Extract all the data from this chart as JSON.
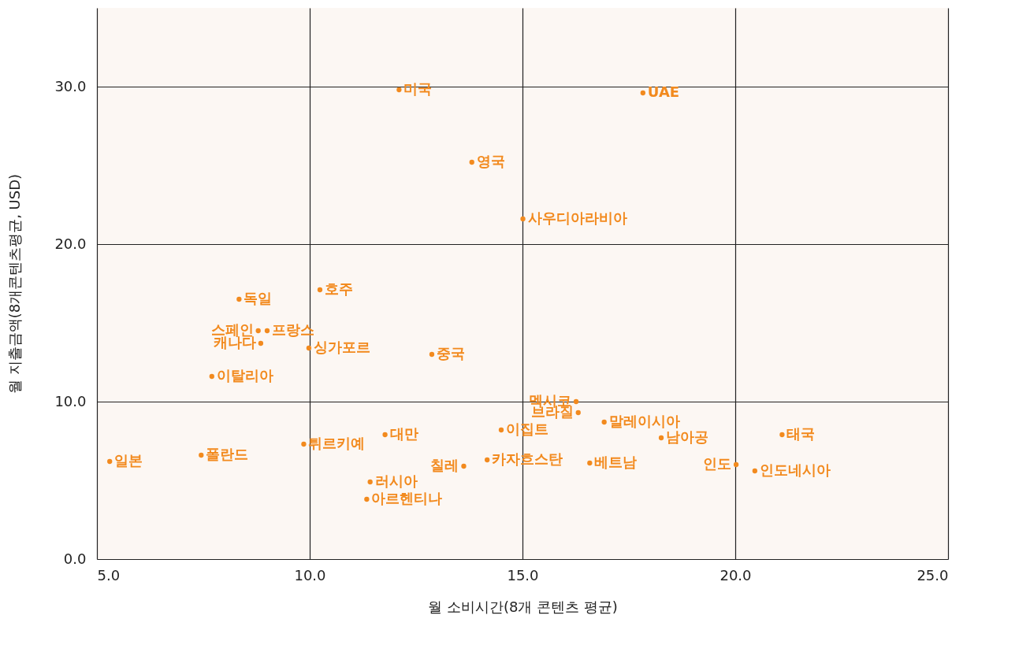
{
  "chart_data": {
    "type": "scatter",
    "xlabel": "월 소비시간(8개 콘텐츠 평균)",
    "ylabel": "월 지출금액(8개콘텐츠평균, USD)",
    "x": [
      12.1,
      17.83,
      13.81,
      15.01,
      10.24,
      8.34,
      8.79,
      9.0,
      8.85,
      9.98,
      12.87,
      7.7,
      5.3,
      7.45,
      9.86,
      11.77,
      11.42,
      11.34,
      13.62,
      14.17,
      14.5,
      16.26,
      16.31,
      16.92,
      18.26,
      16.58,
      21.1,
      20.02,
      20.46
    ],
    "values": [
      29.8,
      29.6,
      25.2,
      21.6,
      17.1,
      16.5,
      14.5,
      14.5,
      13.7,
      13.4,
      13.0,
      11.6,
      6.2,
      6.6,
      7.3,
      7.9,
      4.9,
      3.8,
      5.9,
      6.3,
      8.2,
      10.0,
      9.3,
      8.7,
      7.7,
      6.1,
      7.9,
      6.0,
      5.6
    ],
    "value_labels": [
      "미국",
      "UAE",
      "영국",
      "사우디아라비아",
      "호주",
      "독일",
      "스페인",
      "프랑스",
      "캐나다",
      "싱가포르",
      "중국",
      "이탈리아",
      "일본",
      "폴란드",
      "튀르키예",
      "대만",
      "러시아",
      "아르헨티나",
      "칠레",
      "카자흐스탄",
      "이집트",
      "멕시코",
      "브라질",
      "말레이시아",
      "남아공",
      "베트남",
      "태국",
      "인도",
      "인도네시아"
    ],
    "color": "#f28a1e",
    "xlim": [
      5,
      25
    ],
    "ylim": [
      0,
      35
    ],
    "xticks": [
      {
        "value": 5,
        "label": "5.0"
      },
      {
        "value": 10,
        "label": "10.0"
      },
      {
        "value": 15,
        "label": "15.0"
      },
      {
        "value": 20,
        "label": "20.0"
      },
      {
        "value": 25,
        "label": "25.0"
      }
    ],
    "yticks": [
      {
        "value": 0,
        "label": "0.0"
      },
      {
        "value": 10,
        "label": "10.0"
      },
      {
        "value": 20,
        "label": "20.0"
      },
      {
        "value": 30,
        "label": "30.0"
      }
    ],
    "grid": true
  }
}
